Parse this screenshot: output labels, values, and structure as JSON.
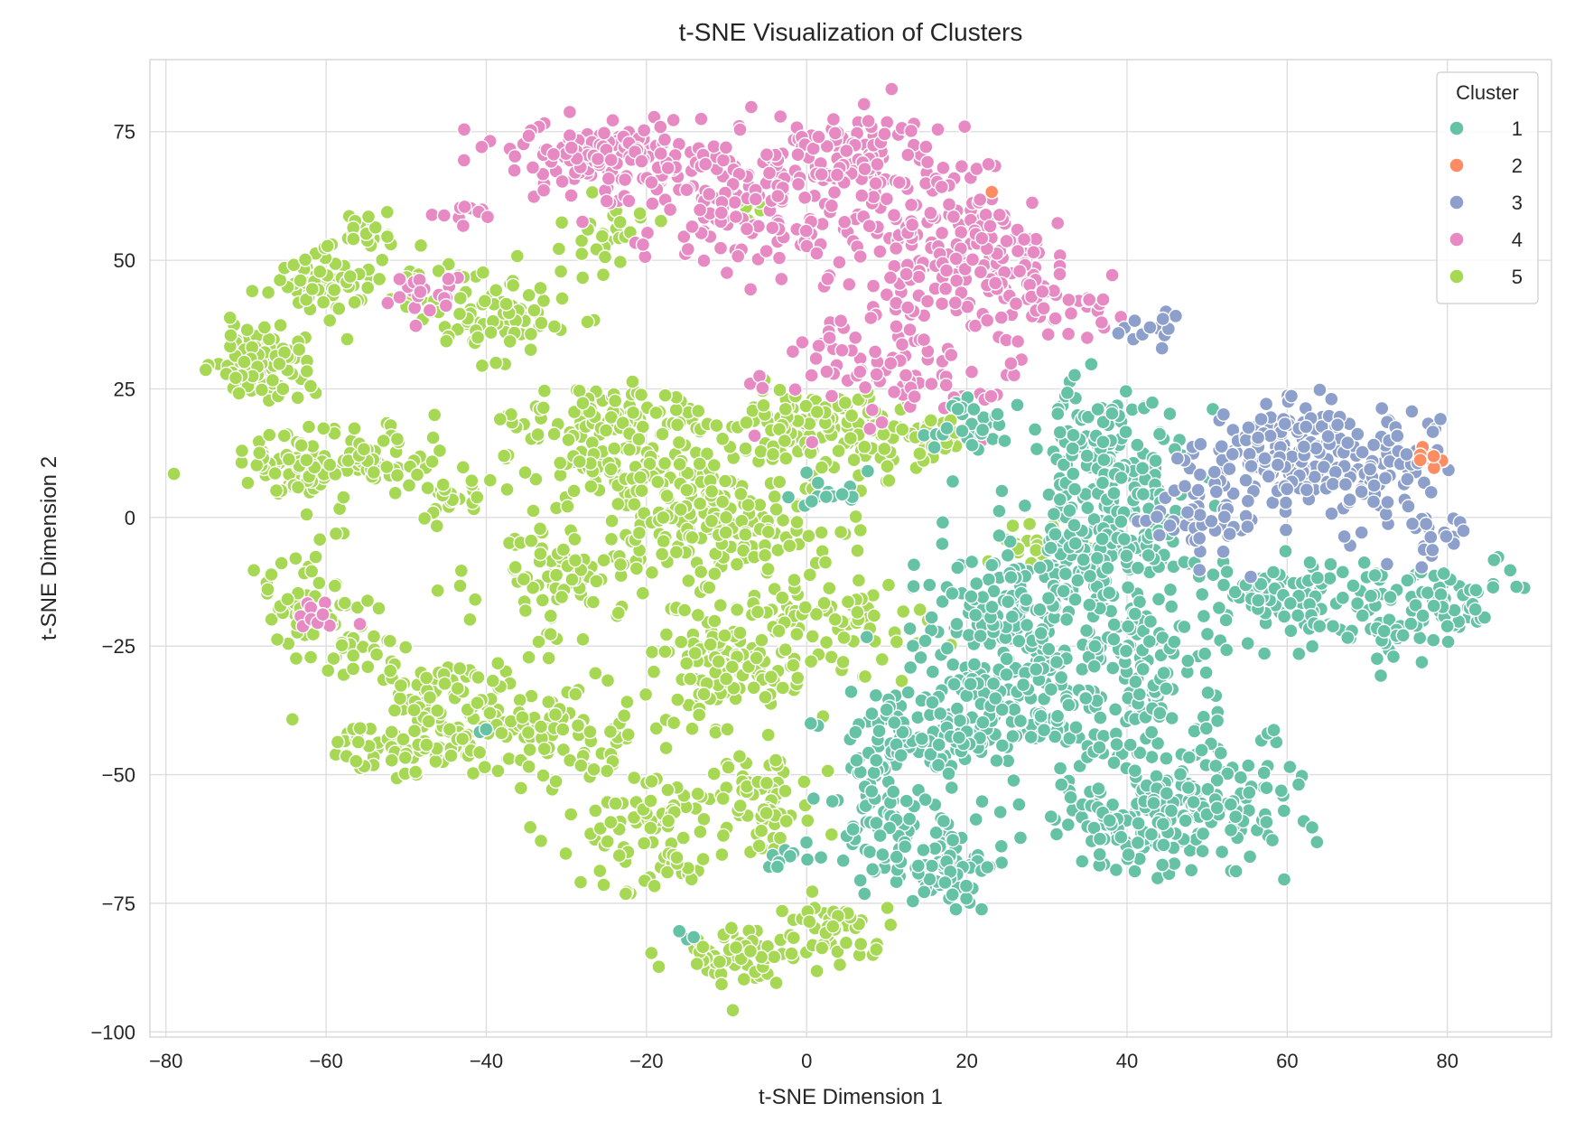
{
  "chart_data": {
    "type": "scatter",
    "title": "t-SNE Visualization of Clusters",
    "xlabel": "t-SNE Dimension 1",
    "ylabel": "t-SNE Dimension 2",
    "xlim": [
      -82,
      93
    ],
    "ylim": [
      -101,
      89
    ],
    "xticks": [
      -80,
      -60,
      -40,
      -20,
      0,
      20,
      40,
      60,
      80
    ],
    "yticks": [
      -100,
      -75,
      -50,
      -25,
      0,
      25,
      50,
      75
    ],
    "xtick_labels": [
      "−80",
      "−60",
      "−40",
      "−20",
      "0",
      "20",
      "40",
      "60",
      "80"
    ],
    "ytick_labels": [
      "−100",
      "−75",
      "−50",
      "−25",
      "0",
      "25",
      "50",
      "75"
    ],
    "grid": true,
    "legend": {
      "title": "Cluster",
      "placement": "top-right",
      "entries": [
        "1",
        "2",
        "3",
        "4",
        "5"
      ]
    },
    "colors": {
      "1": "#66c2a5",
      "2": "#fc8d62",
      "3": "#8da0cb",
      "4": "#e78ac3",
      "5": "#a6d854"
    },
    "series": [
      {
        "name": "1",
        "clusters": [
          {
            "center": [
              37,
              12
            ],
            "spread": [
              6,
              9
            ],
            "n": 140
          },
          {
            "center": [
              38,
              -5
            ],
            "spread": [
              8,
              8
            ],
            "n": 150
          },
          {
            "center": [
              26,
              -18
            ],
            "spread": [
              10,
              10
            ],
            "n": 180
          },
          {
            "center": [
              24,
              -38
            ],
            "spread": [
              10,
              9
            ],
            "n": 160
          },
          {
            "center": [
              40,
              -30
            ],
            "spread": [
              8,
              8
            ],
            "n": 120
          },
          {
            "center": [
              48,
              -53
            ],
            "spread": [
              10,
              10
            ],
            "n": 160
          },
          {
            "center": [
              40,
              -60
            ],
            "spread": [
              7,
              5
            ],
            "n": 80
          },
          {
            "center": [
              18,
              -68
            ],
            "spread": [
              4,
              6
            ],
            "n": 70
          },
          {
            "center": [
              9,
              -58
            ],
            "spread": [
              4,
              10
            ],
            "n": 70
          },
          {
            "center": [
              12,
              -42
            ],
            "spread": [
              7,
              5
            ],
            "n": 60
          },
          {
            "center": [
              60,
              -15
            ],
            "spread": [
              8,
              5
            ],
            "n": 70
          },
          {
            "center": [
              72,
              -20
            ],
            "spread": [
              7,
              6
            ],
            "n": 70
          },
          {
            "center": [
              81,
              -15
            ],
            "spread": [
              4,
              4
            ],
            "n": 40
          },
          {
            "center": [
              20,
              18
            ],
            "spread": [
              4,
              4
            ],
            "n": 30
          },
          {
            "center": [
              3,
              5
            ],
            "spread": [
              3,
              3
            ],
            "n": 14
          },
          {
            "center": [
              -2,
              -66
            ],
            "spread": [
              3,
              2
            ],
            "n": 10
          },
          {
            "center": [
              -15,
              -81
            ],
            "spread": [
              1,
              1
            ],
            "n": 3
          },
          {
            "center": [
              -40,
              -42
            ],
            "spread": [
              1,
              1
            ],
            "n": 2
          }
        ]
      },
      {
        "name": "2",
        "clusters": [
          {
            "center": [
              78,
              12
            ],
            "spread": [
              1.5,
              1.5
            ],
            "n": 12
          },
          {
            "center": [
              23,
              64
            ],
            "spread": [
              0.5,
              0.5
            ],
            "n": 1
          }
        ]
      },
      {
        "name": "3",
        "clusters": [
          {
            "center": [
              60,
              12
            ],
            "spread": [
              8,
              7
            ],
            "n": 180
          },
          {
            "center": [
              72,
              10
            ],
            "spread": [
              6,
              8
            ],
            "n": 70
          },
          {
            "center": [
              50,
              0
            ],
            "spread": [
              4,
              6
            ],
            "n": 50
          },
          {
            "center": [
              42,
              37
            ],
            "spread": [
              4,
              3
            ],
            "n": 14
          },
          {
            "center": [
              78,
              -5
            ],
            "spread": [
              3,
              4
            ],
            "n": 18
          }
        ]
      },
      {
        "name": "4",
        "clusters": [
          {
            "center": [
              -25,
              70
            ],
            "spread": [
              8,
              5
            ],
            "n": 150
          },
          {
            "center": [
              -10,
              60
            ],
            "spread": [
              10,
              9
            ],
            "n": 120
          },
          {
            "center": [
              6,
              70
            ],
            "spread": [
              8,
              6
            ],
            "n": 110
          },
          {
            "center": [
              15,
              55
            ],
            "spread": [
              10,
              9
            ],
            "n": 130
          },
          {
            "center": [
              25,
              48
            ],
            "spread": [
              7,
              7
            ],
            "n": 80
          },
          {
            "center": [
              12,
              30
            ],
            "spread": [
              10,
              8
            ],
            "n": 100
          },
          {
            "center": [
              -48,
              43
            ],
            "spread": [
              3,
              4
            ],
            "n": 20
          },
          {
            "center": [
              -42,
              60
            ],
            "spread": [
              3,
              2
            ],
            "n": 10
          },
          {
            "center": [
              -61,
              -20
            ],
            "spread": [
              3,
              2
            ],
            "n": 12
          },
          {
            "center": [
              33,
              40
            ],
            "spread": [
              4,
              4
            ],
            "n": 30
          }
        ]
      },
      {
        "name": "5",
        "clusters": [
          {
            "center": [
              -68,
              30
            ],
            "spread": [
              4,
              5
            ],
            "n": 90
          },
          {
            "center": [
              -62,
              10
            ],
            "spread": [
              6,
              5
            ],
            "n": 100
          },
          {
            "center": [
              -52,
              12
            ],
            "spread": [
              4,
              4
            ],
            "n": 40
          },
          {
            "center": [
              -60,
              45
            ],
            "spread": [
              5,
              4
            ],
            "n": 60
          },
          {
            "center": [
              -55,
              55
            ],
            "spread": [
              3,
              3
            ],
            "n": 25
          },
          {
            "center": [
              -40,
              40
            ],
            "spread": [
              6,
              6
            ],
            "n": 90
          },
          {
            "center": [
              -25,
              55
            ],
            "spread": [
              4,
              4
            ],
            "n": 30
          },
          {
            "center": [
              -25,
              20
            ],
            "spread": [
              7,
              4
            ],
            "n": 80
          },
          {
            "center": [
              -20,
              10
            ],
            "spread": [
              10,
              6
            ],
            "n": 110
          },
          {
            "center": [
              -10,
              0
            ],
            "spread": [
              10,
              8
            ],
            "n": 150
          },
          {
            "center": [
              -30,
              -10
            ],
            "spread": [
              8,
              8
            ],
            "n": 100
          },
          {
            "center": [
              -62,
              -18
            ],
            "spread": [
              4,
              10
            ],
            "n": 60
          },
          {
            "center": [
              -55,
              -25
            ],
            "spread": [
              3,
              4
            ],
            "n": 20
          },
          {
            "center": [
              -45,
              -35
            ],
            "spread": [
              6,
              5
            ],
            "n": 80
          },
          {
            "center": [
              -50,
              -45
            ],
            "spread": [
              6,
              4
            ],
            "n": 60
          },
          {
            "center": [
              -32,
              -42
            ],
            "spread": [
              8,
              6
            ],
            "n": 90
          },
          {
            "center": [
              -10,
              -30
            ],
            "spread": [
              8,
              8
            ],
            "n": 110
          },
          {
            "center": [
              0,
              -20
            ],
            "spread": [
              10,
              6
            ],
            "n": 90
          },
          {
            "center": [
              -20,
              -60
            ],
            "spread": [
              7,
              8
            ],
            "n": 90
          },
          {
            "center": [
              -5,
              -55
            ],
            "spread": [
              5,
              7
            ],
            "n": 60
          },
          {
            "center": [
              -8,
              -85
            ],
            "spread": [
              6,
              4
            ],
            "n": 60
          },
          {
            "center": [
              3,
              -80
            ],
            "spread": [
              4,
              4
            ],
            "n": 40
          },
          {
            "center": [
              0,
              18
            ],
            "spread": [
              8,
              5
            ],
            "n": 100
          },
          {
            "center": [
              12,
              15
            ],
            "spread": [
              5,
              4
            ],
            "n": 50
          },
          {
            "center": [
              -45,
              5
            ],
            "spread": [
              3,
              4
            ],
            "n": 25
          },
          {
            "center": [
              -7,
              60
            ],
            "spread": [
              2,
              2
            ],
            "n": 8
          },
          {
            "center": [
              30,
              -5
            ],
            "spread": [
              6,
              5
            ],
            "n": 20
          }
        ]
      }
    ]
  }
}
